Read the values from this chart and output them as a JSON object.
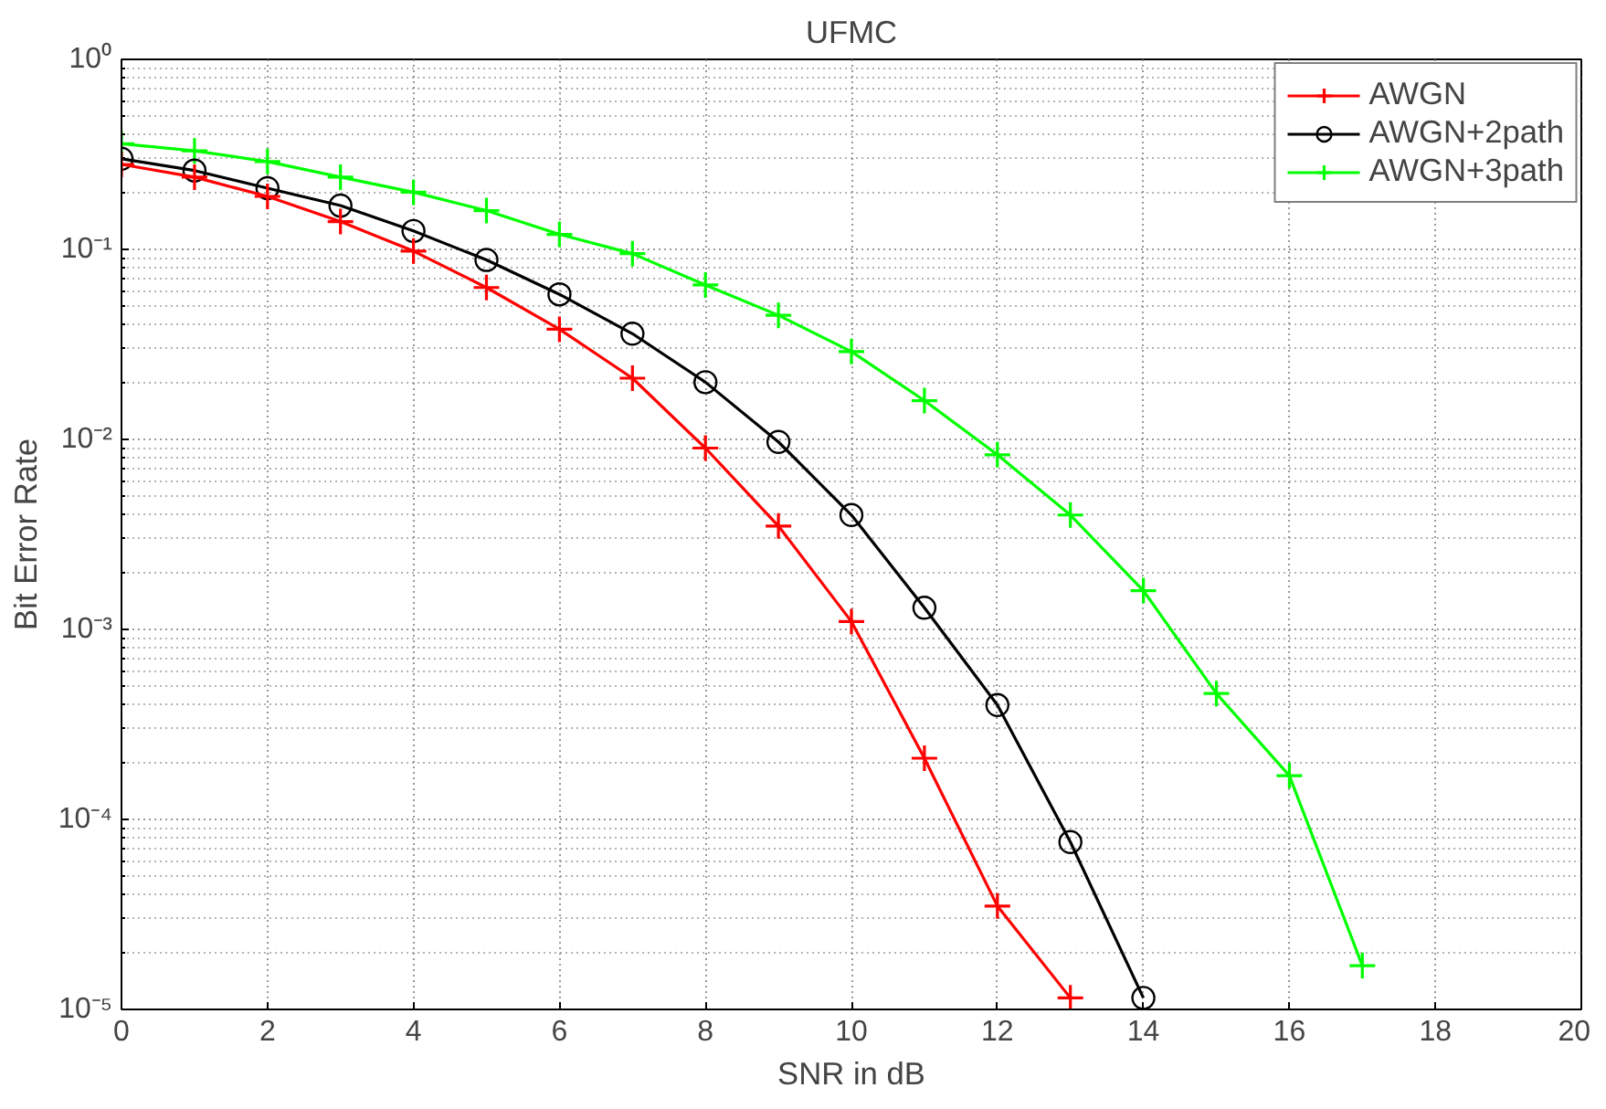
{
  "chart_data": {
    "type": "line",
    "title": "UFMC",
    "xlabel": "SNR in dB",
    "ylabel": "Bit Error Rate",
    "log": "y",
    "grid": true,
    "legend": "top right",
    "line_style": "solid",
    "xlim": [
      0,
      20
    ],
    "xticks": [
      0,
      2,
      4,
      6,
      8,
      10,
      12,
      14,
      16,
      18,
      20
    ],
    "ylim": [
      1e-05,
      1
    ],
    "yticks": [
      {
        "value": 1e-05,
        "label": "10⁻⁵"
      },
      {
        "value": 0.0001,
        "label": "10⁻⁴"
      },
      {
        "value": 0.001,
        "label": "10⁻³"
      },
      {
        "value": 0.01,
        "label": "10⁻²"
      },
      {
        "value": 0.1,
        "label": "10⁻¹"
      },
      {
        "value": 1,
        "label": "10⁰"
      }
    ],
    "series": [
      {
        "name": "AWGN",
        "color": "#ff0000",
        "marker": "cross",
        "x": [
          0,
          1,
          2,
          3,
          4,
          5,
          6,
          7,
          8,
          9,
          10,
          11,
          12,
          13
        ],
        "values": [
          0.28,
          0.24,
          0.19,
          0.14,
          0.098,
          0.063,
          0.038,
          0.021,
          0.009,
          0.0035,
          0.0011,
          0.00021,
          3.5e-05,
          1.15e-05
        ]
      },
      {
        "name": "AWGN+2path",
        "color": "#000000",
        "marker": "circle",
        "x": [
          0,
          1,
          2,
          3,
          4,
          5,
          6,
          7,
          8,
          9,
          10,
          11,
          12,
          13,
          14
        ],
        "values": [
          0.3,
          0.26,
          0.21,
          0.17,
          0.125,
          0.088,
          0.058,
          0.036,
          0.02,
          0.0097,
          0.004,
          0.0013,
          0.0004,
          7.6e-05,
          1.15e-05
        ]
      },
      {
        "name": "AWGN+3path",
        "color": "#00ff00",
        "marker": "cross",
        "x": [
          0,
          1,
          2,
          3,
          4,
          5,
          6,
          7,
          8,
          9,
          10,
          11,
          12,
          13,
          14,
          15,
          16,
          17
        ],
        "values": [
          0.36,
          0.33,
          0.29,
          0.24,
          0.2,
          0.16,
          0.12,
          0.095,
          0.065,
          0.045,
          0.029,
          0.016,
          0.0083,
          0.004,
          0.0016,
          0.00046,
          0.00017,
          1.7e-05
        ]
      }
    ]
  }
}
